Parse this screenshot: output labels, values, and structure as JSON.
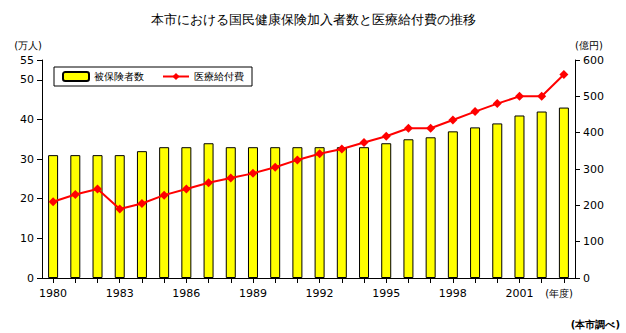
{
  "chart_data": {
    "type": "bar",
    "title": "本市における国民健康保険加入者数と医療給付費の推移",
    "categories": [
      "1980",
      null,
      null,
      "1983",
      null,
      null,
      "1986",
      null,
      null,
      "1989",
      null,
      null,
      "1992",
      null,
      null,
      "1995",
      null,
      null,
      "1998",
      null,
      null,
      "2001",
      null,
      null
    ],
    "x_label": "(年度)",
    "y_label": "(万人)",
    "y2_label": "(億円)",
    "series": [
      {
        "name": "被保険者数",
        "type": "bar",
        "color": "#ffff00",
        "values": [
          31,
          31,
          31,
          31,
          32,
          33,
          33,
          34,
          33,
          33,
          33,
          33,
          33,
          33,
          33,
          34,
          35,
          35.5,
          37,
          38,
          39,
          41,
          42,
          43
        ]
      },
      {
        "name": "医療給付費",
        "type": "line",
        "color": "#ff0000",
        "marker": "diamond",
        "axis": "y2",
        "values": [
          210,
          230,
          245,
          190,
          205,
          228,
          245,
          262,
          275,
          288,
          305,
          325,
          342,
          355,
          373,
          390,
          412,
          412,
          435,
          458,
          480,
          500,
          500,
          560
        ]
      }
    ],
    "ylim": [
      0,
      55
    ],
    "yticks": [
      0,
      10,
      20,
      30,
      40,
      50
    ],
    "y2lim": [
      0,
      600
    ],
    "y2ticks": [
      0,
      100,
      200,
      300,
      400,
      500,
      600
    ],
    "grid": false,
    "legend": "upper left",
    "annotations": [
      "(本市調べ)"
    ]
  }
}
